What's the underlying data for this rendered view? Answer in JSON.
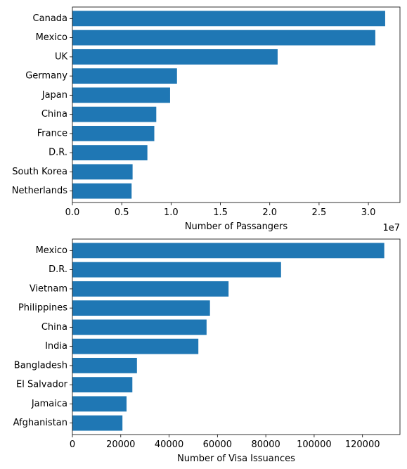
{
  "chart_data": [
    {
      "type": "bar",
      "orientation": "horizontal",
      "categories": [
        "Canada",
        "Mexico",
        "UK",
        "Germany",
        "Japan",
        "China",
        "France",
        "D.R.",
        "South Korea",
        "Netherlands"
      ],
      "values": [
        31700000,
        30700000,
        20800000,
        10600000,
        9900000,
        8500000,
        8300000,
        7600000,
        6100000,
        6000000
      ],
      "xlabel": "Number of Passangers",
      "ylabel": "",
      "xlim": [
        0,
        33200000
      ],
      "xticks": [
        0,
        0.5,
        1.0,
        1.5,
        2.0,
        2.5,
        3.0
      ],
      "xtick_labels": [
        "0.0",
        "0.5",
        "1.0",
        "1.5",
        "2.0",
        "2.5",
        "3.0"
      ],
      "offset_label": "1e7",
      "color": "#1f77b4",
      "grid": false
    },
    {
      "type": "bar",
      "orientation": "horizontal",
      "categories": [
        "Mexico",
        "D.R.",
        "Vietnam",
        "Philippines",
        "China",
        "India",
        "Bangladesh",
        "El Salvador",
        "Jamaica",
        "Afghanistan"
      ],
      "values": [
        129000,
        86300,
        64600,
        56900,
        55500,
        52100,
        26700,
        24800,
        22400,
        20700
      ],
      "xlabel": "Number of Visa Issuances",
      "ylabel": "",
      "xlim": [
        0,
        135500
      ],
      "xticks": [
        0,
        20000,
        40000,
        60000,
        80000,
        100000,
        120000
      ],
      "xtick_labels": [
        "0",
        "20000",
        "40000",
        "60000",
        "80000",
        "100000",
        "120000"
      ],
      "color": "#1f77b4",
      "grid": false
    }
  ]
}
